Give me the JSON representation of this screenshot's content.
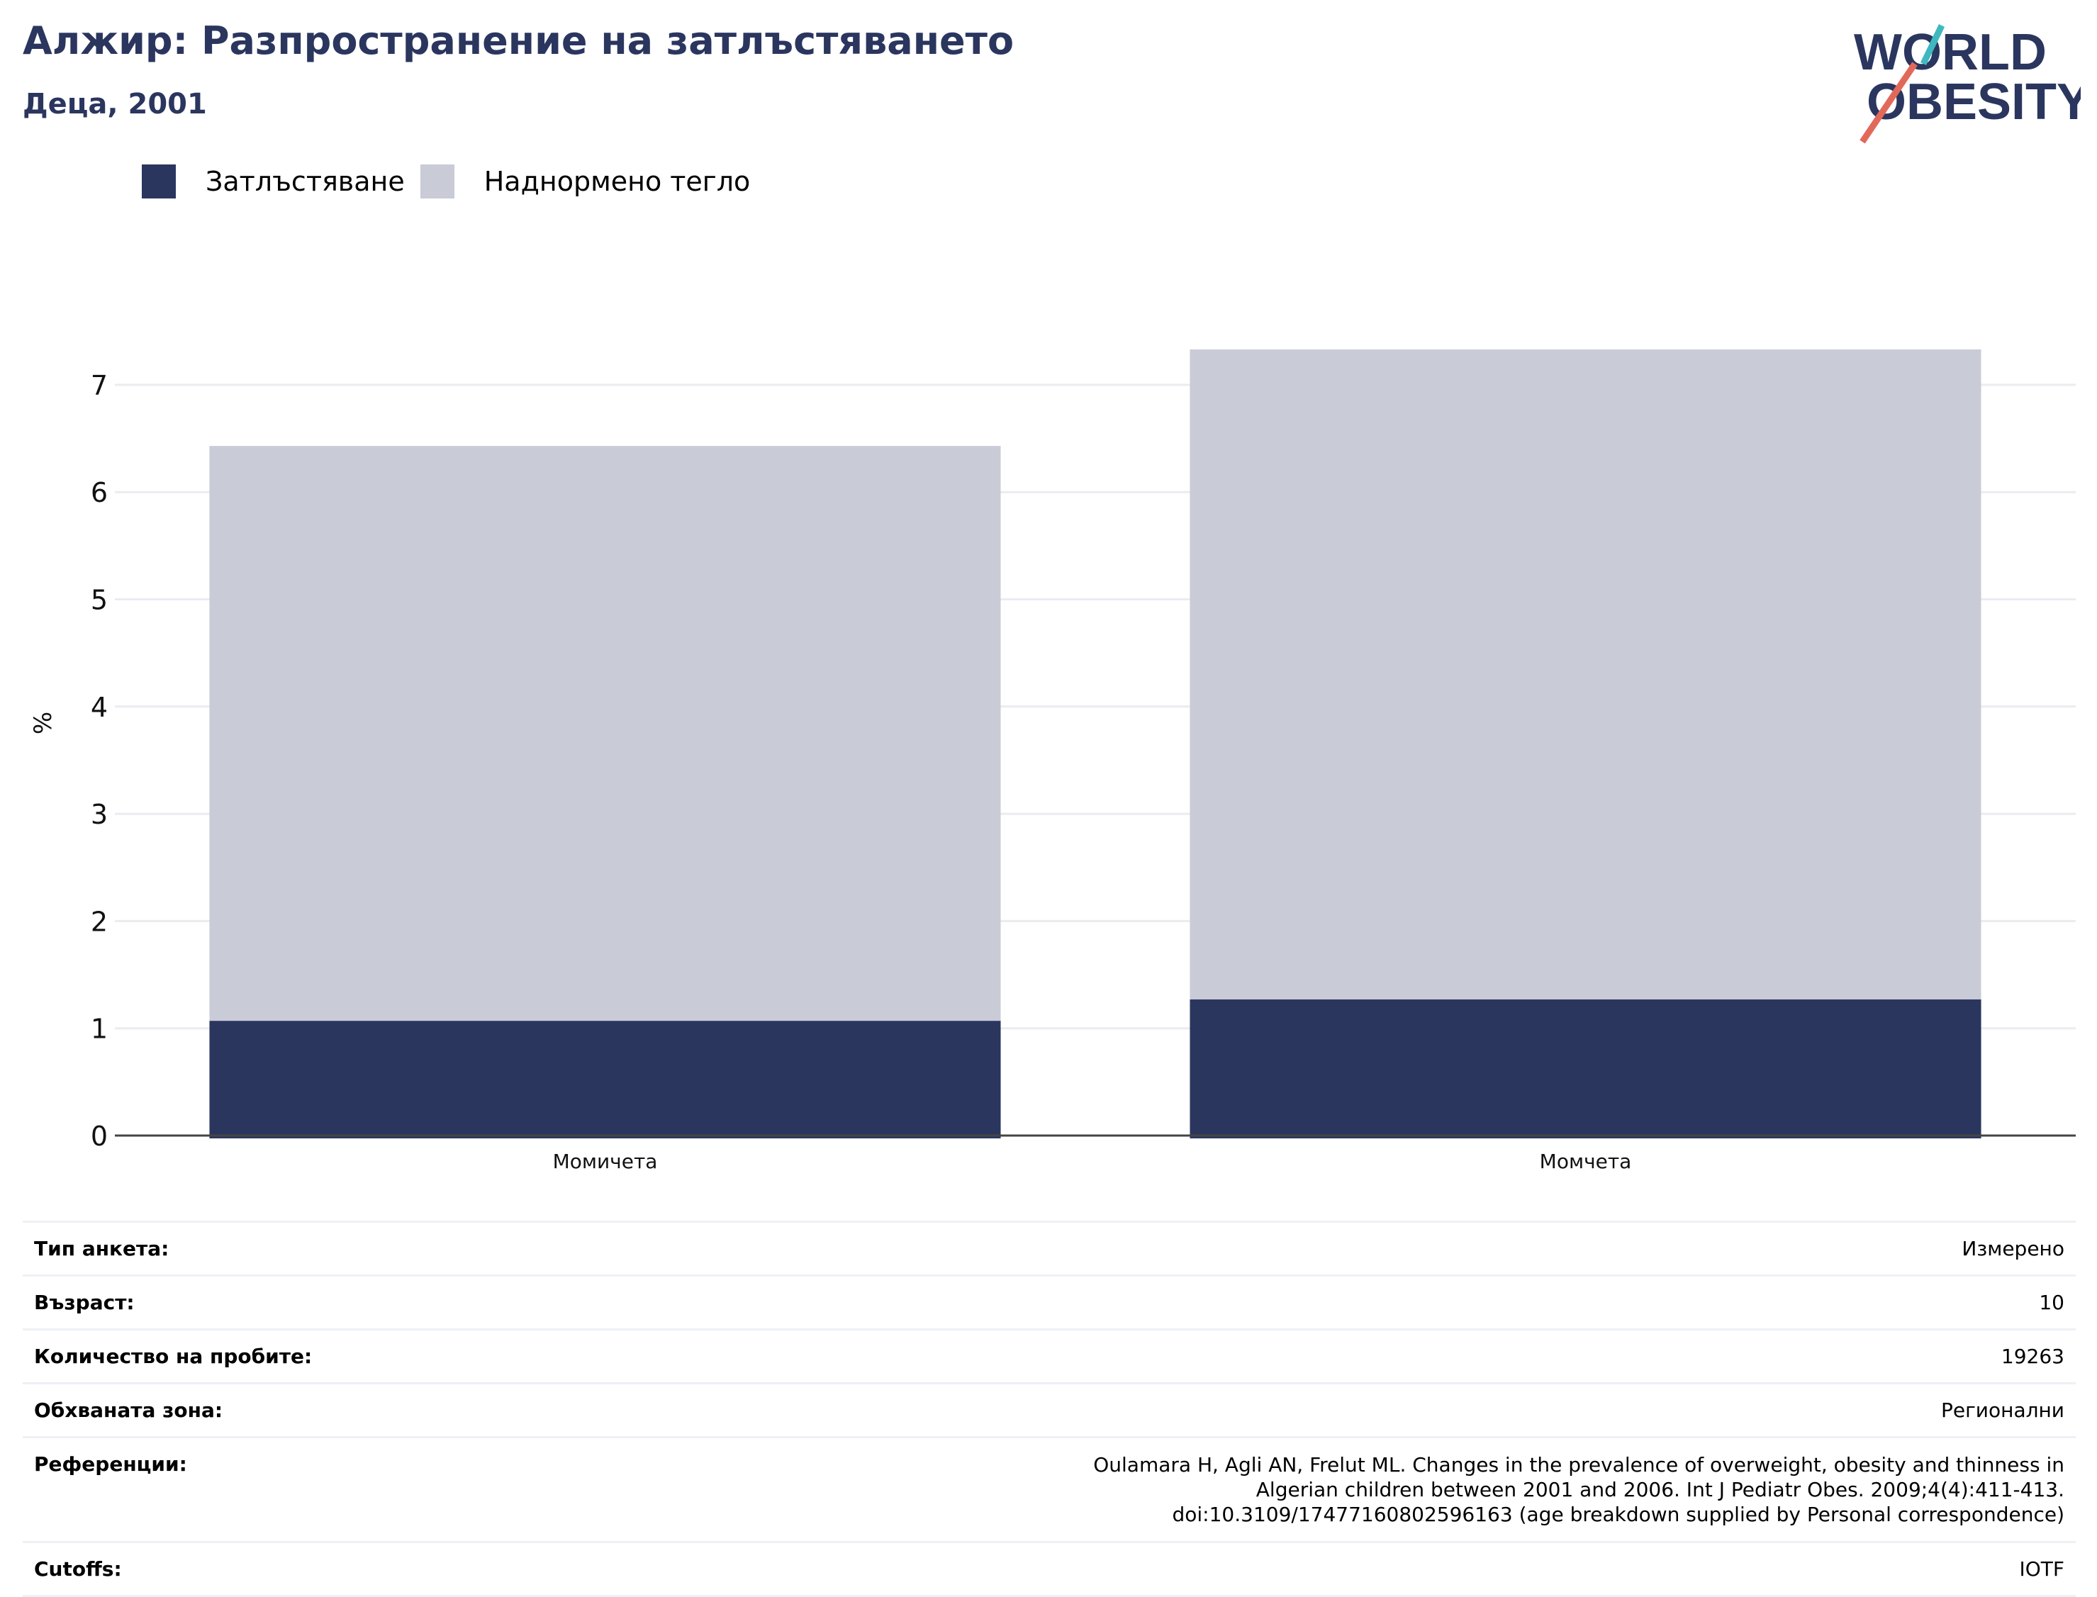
{
  "header": {
    "title": "Алжир: Разпространение на затлъстяването",
    "subtitle": "Деца, 2001",
    "logo_line1": "WORLD",
    "logo_line2": "OBESITY"
  },
  "colors": {
    "obesity": "#2b365f",
    "overweight": "#c9cbd7",
    "title": "#2b365f",
    "logo_teal": "#3fb8c0",
    "logo_coral": "#e2695a"
  },
  "chart_data": {
    "type": "bar",
    "stacked": true,
    "categories": [
      "Момичета",
      "Момчета"
    ],
    "series": [
      {
        "name": "Затлъстяване",
        "values": [
          1.07,
          1.27
        ]
      },
      {
        "name": "Наднормено тегло",
        "values": [
          5.36,
          6.06
        ]
      }
    ],
    "totals": [
      6.43,
      7.33
    ],
    "ylabel": "%",
    "ylim": [
      0,
      7.5
    ],
    "yticks": [
      "0",
      "1",
      "2",
      "3",
      "4",
      "5",
      "6",
      "7"
    ],
    "grid": true,
    "legend_position": "top-left"
  },
  "info": [
    {
      "label": "Тип анкета:",
      "value": "Измерено"
    },
    {
      "label": "Възраст:",
      "value": "10"
    },
    {
      "label": "Количество на пробите:",
      "value": "19263"
    },
    {
      "label": "Обхваната зона:",
      "value": "Регионални"
    },
    {
      "label": "Референции:",
      "value": "Oulamara H, Agli AN, Frelut ML. Changes in the prevalence of overweight, obesity and thinness in Algerian children between 2001 and 2006. Int J Pediatr Obes. 2009;4(4):411-413. doi:10.3109/17477160802596163 (age breakdown supplied by Personal correspondence)"
    },
    {
      "label": "Cutoffs:",
      "value": "IOTF"
    }
  ]
}
